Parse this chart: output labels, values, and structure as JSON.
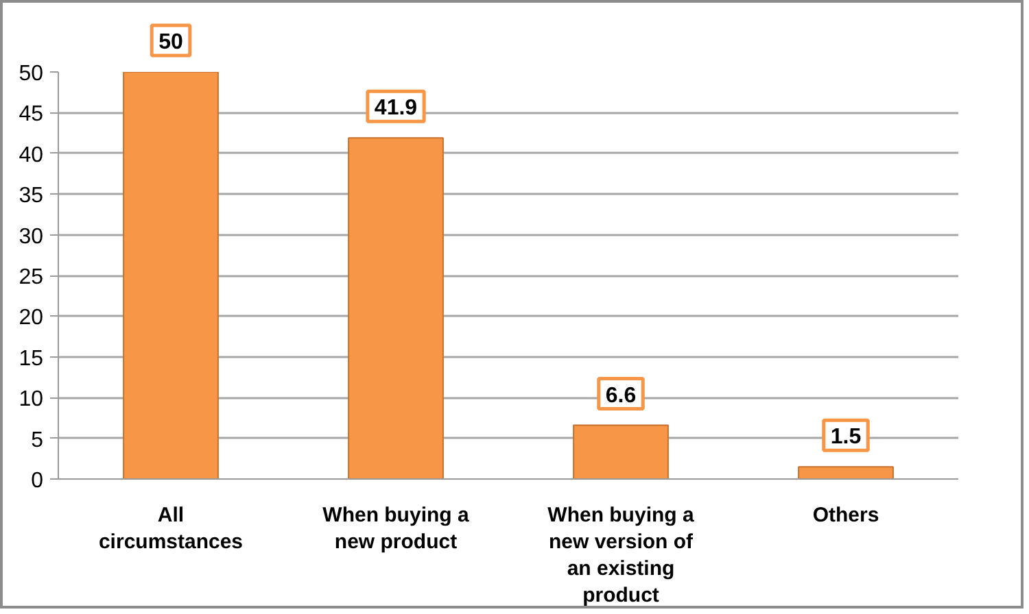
{
  "chart_data": {
    "type": "bar",
    "categories": [
      "All circumstances",
      "When buying a new product",
      "When buying a new version of an existing product",
      "Others"
    ],
    "values": [
      50,
      41.9,
      6.6,
      1.5
    ],
    "color": "#f79646",
    "ylim": [
      0,
      50
    ],
    "yticks": [
      0,
      5,
      10,
      15,
      20,
      25,
      30,
      35,
      40,
      45,
      50
    ],
    "grid": "y",
    "data_labels": true
  }
}
